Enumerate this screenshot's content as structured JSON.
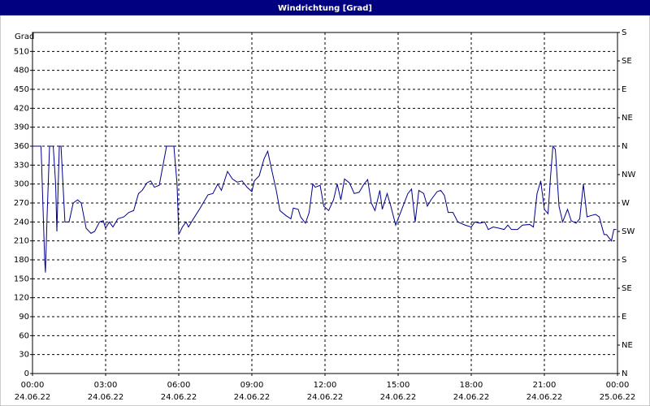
{
  "chart_data": {
    "type": "line",
    "title": "Windrichtung [Grad]",
    "ylabel": "Grad",
    "xlim": [
      0,
      24
    ],
    "ylim": [
      0,
      540
    ],
    "y2lim": [
      0,
      540
    ],
    "yticks": [
      0,
      30,
      60,
      90,
      120,
      150,
      180,
      210,
      240,
      270,
      300,
      330,
      360,
      390,
      420,
      450,
      480,
      510
    ],
    "y2ticks": [
      {
        "value": 0,
        "label": "N"
      },
      {
        "value": 45,
        "label": "NE"
      },
      {
        "value": 90,
        "label": "E"
      },
      {
        "value": 135,
        "label": "SE"
      },
      {
        "value": 180,
        "label": "S"
      },
      {
        "value": 225,
        "label": "SW"
      },
      {
        "value": 270,
        "label": "W"
      },
      {
        "value": 315,
        "label": "NW"
      },
      {
        "value": 360,
        "label": "N"
      },
      {
        "value": 405,
        "label": "NE"
      },
      {
        "value": 450,
        "label": "E"
      },
      {
        "value": 495,
        "label": "SE"
      },
      {
        "value": 540,
        "label": "S"
      }
    ],
    "xticks": [
      {
        "value": 0,
        "label": "00:00"
      },
      {
        "value": 3,
        "label": "03:00"
      },
      {
        "value": 6,
        "label": "06:00"
      },
      {
        "value": 9,
        "label": "09:00"
      },
      {
        "value": 12,
        "label": "12:00"
      },
      {
        "value": 15,
        "label": "15:00"
      },
      {
        "value": 18,
        "label": "18:00"
      },
      {
        "value": 21,
        "label": "21:00"
      },
      {
        "value": 24,
        "label": "00:00"
      }
    ],
    "xtick_dates": [
      "24.06.22",
      "24.06.22",
      "24.06.22",
      "24.06.22",
      "24.06.22",
      "24.06.22",
      "24.06.22",
      "24.06.22",
      "25.06.22"
    ],
    "grid": true,
    "x": [
      0,
      0.35,
      0.45,
      0.5,
      0.53,
      0.6,
      0.7,
      0.85,
      0.95,
      1.0,
      1.1,
      1.17,
      1.25,
      1.33,
      1.5,
      1.67,
      1.85,
      2.0,
      2.2,
      2.4,
      2.55,
      2.75,
      2.9,
      3.0,
      3.15,
      3.3,
      3.5,
      3.75,
      3.95,
      4.15,
      4.35,
      4.5,
      4.7,
      4.85,
      5.0,
      5.2,
      5.5,
      5.8,
      5.93,
      6.0,
      6.15,
      6.3,
      6.4,
      6.6,
      6.85,
      7.0,
      7.2,
      7.4,
      7.6,
      7.75,
      8.0,
      8.2,
      8.4,
      8.6,
      8.8,
      9.0,
      9.1,
      9.3,
      9.5,
      9.65,
      9.8,
      10.0,
      10.15,
      10.4,
      10.6,
      10.7,
      10.9,
      11.0,
      11.2,
      11.35,
      11.5,
      11.6,
      11.8,
      11.95,
      12.15,
      12.35,
      12.5,
      12.65,
      12.8,
      13.0,
      13.2,
      13.4,
      13.6,
      13.75,
      13.9,
      14.05,
      14.25,
      14.35,
      14.55,
      14.7,
      14.9,
      15.0,
      15.15,
      15.4,
      15.55,
      15.7,
      15.85,
      16.05,
      16.2,
      16.35,
      16.6,
      16.75,
      16.9,
      17.05,
      17.25,
      17.45,
      17.75,
      18.0,
      18.15,
      18.35,
      18.55,
      18.7,
      18.9,
      19.15,
      19.35,
      19.5,
      19.65,
      19.9,
      20.1,
      20.4,
      20.55,
      20.7,
      20.85,
      21.0,
      21.15,
      21.25,
      21.35,
      21.45,
      21.6,
      21.75,
      21.95,
      22.1,
      22.3,
      22.45,
      22.6,
      22.75,
      22.9,
      23.1,
      23.25,
      23.45,
      23.55,
      23.65,
      23.75,
      23.85,
      23.95
    ],
    "series": [
      {
        "color": "#00008b",
        "values": [
          360,
          360,
          240,
          180,
          160,
          250,
          360,
          360,
          300,
          225,
          360,
          360,
          300,
          240,
          240,
          270,
          275,
          270,
          230,
          222,
          225,
          240,
          242,
          230,
          240,
          232,
          245,
          248,
          255,
          258,
          285,
          290,
          302,
          305,
          295,
          298,
          360,
          360,
          300,
          220,
          232,
          240,
          232,
          245,
          260,
          270,
          283,
          285,
          300,
          290,
          320,
          308,
          303,
          305,
          295,
          288,
          305,
          313,
          340,
          352,
          325,
          290,
          258,
          250,
          245,
          262,
          260,
          248,
          238,
          255,
          300,
          295,
          298,
          265,
          258,
          275,
          300,
          275,
          308,
          302,
          285,
          287,
          300,
          307,
          270,
          258,
          290,
          260,
          285,
          265,
          235,
          245,
          260,
          285,
          292,
          240,
          290,
          285,
          265,
          275,
          288,
          290,
          282,
          255,
          255,
          240,
          235,
          232,
          240,
          238,
          240,
          228,
          232,
          230,
          228,
          235,
          228,
          228,
          235,
          236,
          232,
          285,
          305,
          260,
          253,
          310,
          360,
          355,
          265,
          240,
          260,
          242,
          238,
          245,
          300,
          248,
          250,
          252,
          248,
          220,
          220,
          215,
          210,
          228,
          228
        ]
      }
    ]
  }
}
